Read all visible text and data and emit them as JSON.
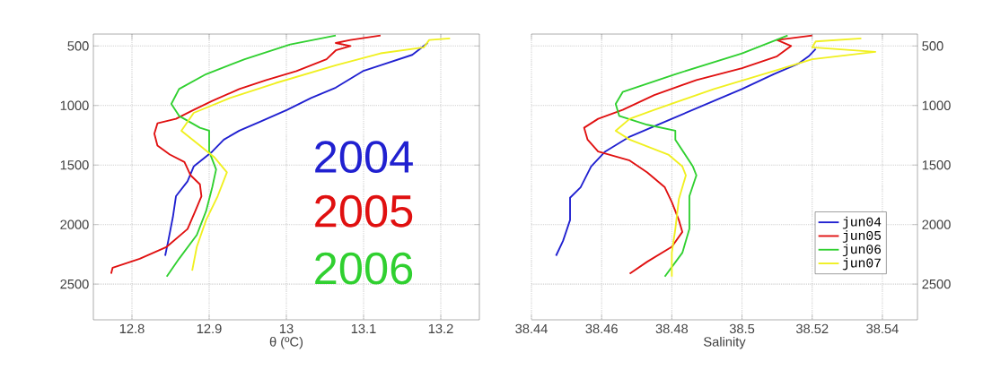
{
  "chart_data": [
    {
      "type": "line",
      "xlabel": "θ (ºC)",
      "xlim": [
        12.75,
        13.25
      ],
      "xticks": [
        12.8,
        12.9,
        13,
        13.1,
        13.2
      ],
      "ylim": [
        2800,
        400
      ],
      "yticks": [
        500,
        1000,
        1500,
        2000,
        2500
      ],
      "grid": true,
      "line_style": "solid",
      "annotations": [
        "2004",
        "2005",
        "2006"
      ],
      "series": [
        {
          "color": "#2020d0",
          "x": [
            13.183,
            13.163,
            13.122,
            13.099,
            13.064,
            13.032,
            13.001,
            12.966,
            12.939,
            12.919,
            12.904,
            12.88,
            12.872,
            12.857,
            12.853,
            12.847,
            12.843
          ],
          "values": [
            475,
            575,
            662,
            712,
            850,
            937,
            1037,
            1137,
            1212,
            1287,
            1387,
            1512,
            1637,
            1762,
            1937,
            2137,
            2262
          ]
        },
        {
          "color": "#e01010",
          "x": [
            13.122,
            13.083,
            13.064,
            13.083,
            13.064,
            13.052,
            13.013,
            12.974,
            12.939,
            12.904,
            12.88,
            12.857,
            12.833,
            12.829,
            12.833,
            12.849,
            12.868,
            12.876,
            12.888,
            12.89,
            12.882,
            12.872,
            12.845,
            12.81,
            12.775,
            12.773
          ],
          "values": [
            412,
            450,
            475,
            500,
            537,
            612,
            712,
            787,
            862,
            962,
            1037,
            1112,
            1150,
            1237,
            1337,
            1412,
            1475,
            1587,
            1662,
            1762,
            1887,
            2037,
            2187,
            2287,
            2362,
            2412
          ]
        },
        {
          "color": "#30d030",
          "x": [
            13.064,
            13.005,
            12.946,
            12.896,
            12.861,
            12.851,
            12.861,
            12.888,
            12.9,
            12.9,
            12.909,
            12.904,
            12.896,
            12.884,
            12.861,
            12.845
          ],
          "values": [
            412,
            487,
            612,
            737,
            862,
            987,
            1087,
            1187,
            1212,
            1387,
            1537,
            1687,
            1887,
            2087,
            2287,
            2437
          ]
        },
        {
          "color": "#f0f020",
          "x": [
            13.212,
            13.185,
            13.178,
            13.122,
            13.064,
            12.986,
            12.927,
            12.88,
            12.864,
            12.888,
            12.907,
            12.923,
            12.911,
            12.896,
            12.884,
            12.878
          ],
          "values": [
            437,
            450,
            512,
            562,
            662,
            812,
            937,
            1062,
            1212,
            1337,
            1437,
            1562,
            1762,
            1962,
            2187,
            2387
          ]
        }
      ]
    },
    {
      "type": "line",
      "xlabel": "Salinity",
      "xlim": [
        38.44,
        38.55
      ],
      "xticks": [
        38.44,
        38.46,
        38.48,
        38.5,
        38.52,
        38.54
      ],
      "y2lim": [
        2800,
        400
      ],
      "y2ticks": [
        500,
        1000,
        1500,
        2000,
        2500
      ],
      "grid": true,
      "legend": "bottom right",
      "line_style": "solid",
      "series": [
        {
          "name": "jun04",
          "color": "#2020d0",
          "axis": "y2",
          "x": [
            38.521,
            38.519,
            38.516,
            38.509,
            38.5,
            38.492,
            38.48,
            38.468,
            38.461,
            38.457,
            38.454,
            38.451,
            38.451,
            38.449,
            38.447
          ],
          "values": [
            525,
            587,
            650,
            737,
            862,
            962,
            1112,
            1262,
            1387,
            1512,
            1687,
            1775,
            1962,
            2137,
            2262
          ]
        },
        {
          "name": "jun05",
          "color": "#e01010",
          "axis": "y2",
          "x": [
            38.52,
            38.51,
            38.514,
            38.51,
            38.5,
            38.487,
            38.475,
            38.466,
            38.459,
            38.455,
            38.456,
            38.459,
            38.468,
            38.473,
            38.478,
            38.48,
            38.482,
            38.483,
            38.48,
            38.473,
            38.468
          ],
          "values": [
            412,
            450,
            500,
            587,
            687,
            787,
            912,
            1037,
            1112,
            1187,
            1287,
            1387,
            1462,
            1562,
            1687,
            1812,
            1962,
            2062,
            2187,
            2312,
            2412
          ]
        },
        {
          "name": "jun06",
          "color": "#30d030",
          "axis": "y2",
          "x": [
            38.513,
            38.5,
            38.481,
            38.466,
            38.464,
            38.465,
            38.473,
            38.481,
            38.481,
            38.486,
            38.487,
            38.485,
            38.485,
            38.483,
            38.478
          ],
          "values": [
            412,
            562,
            737,
            887,
            987,
            1087,
            1162,
            1212,
            1287,
            1512,
            1587,
            1762,
            2037,
            2237,
            2437
          ]
        },
        {
          "name": "jun07",
          "color": "#f0f020",
          "axis": "y2",
          "x": [
            38.534,
            38.521,
            38.52,
            38.538,
            38.52,
            38.509,
            38.492,
            38.475,
            38.468,
            38.464,
            38.468,
            38.479,
            38.483,
            38.484,
            38.482,
            38.481,
            38.48,
            38.48
          ],
          "values": [
            437,
            462,
            512,
            550,
            612,
            712,
            862,
            1037,
            1112,
            1212,
            1287,
            1412,
            1512,
            1587,
            1787,
            2037,
            2237,
            2437
          ]
        }
      ]
    }
  ]
}
